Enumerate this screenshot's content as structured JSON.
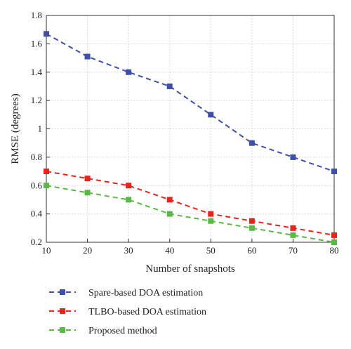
{
  "chart_data": {
    "type": "line",
    "title": "",
    "xlabel": "Number of snapshots",
    "ylabel": "RMSE (degrees)",
    "x": [
      10,
      20,
      30,
      40,
      50,
      60,
      70,
      80
    ],
    "xlim": [
      10,
      80
    ],
    "ylim": [
      0.2,
      1.8
    ],
    "x_ticks": [
      "10",
      "20",
      "30",
      "40",
      "50",
      "60",
      "70",
      "80"
    ],
    "y_ticks": [
      "0.2",
      "0.4",
      "0.6",
      "0.8",
      "1",
      "1.2",
      "1.4",
      "1.6",
      "1.8"
    ],
    "grid": true,
    "legend_position": "below",
    "series": [
      {
        "name": "Spare-based DOA estimation",
        "color": "#3d4fa8",
        "values": [
          1.67,
          1.51,
          1.4,
          1.3,
          1.1,
          0.9,
          0.8,
          0.7
        ]
      },
      {
        "name": "TLBO-based DOA estimation",
        "color": "#e8221c",
        "values": [
          0.7,
          0.65,
          0.6,
          0.5,
          0.4,
          0.35,
          0.3,
          0.25
        ]
      },
      {
        "name": "Proposed method",
        "color": "#5ab946",
        "values": [
          0.6,
          0.55,
          0.5,
          0.4,
          0.35,
          0.3,
          0.25,
          0.2
        ]
      }
    ]
  }
}
